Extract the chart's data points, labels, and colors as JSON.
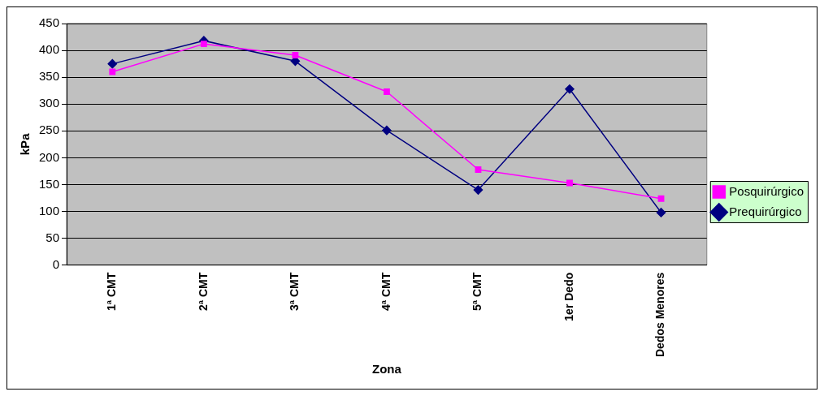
{
  "chart_data": {
    "type": "line",
    "xlabel": "Zona",
    "ylabel": "kPa",
    "categories": [
      "1ª CMT",
      "2ª CMT",
      "3ª CMT",
      "4ª CMT",
      "5ª CMT",
      "1er Dedo",
      "Dedos Menores"
    ],
    "series": [
      {
        "name": "Prequirúrgico",
        "color": "#000080",
        "marker": "diamond",
        "values": [
          375,
          418,
          380,
          251,
          140,
          328,
          98
        ]
      },
      {
        "name": "Posquirúrgico",
        "color": "#ff00ff",
        "marker": "square",
        "values": [
          360,
          412,
          391,
          323,
          178,
          153,
          124
        ]
      }
    ],
    "ylim": [
      0,
      450
    ],
    "yticks": [
      0,
      50,
      100,
      150,
      200,
      250,
      300,
      350,
      400,
      450
    ],
    "grid": "y",
    "legend": "right",
    "line_style": "solid"
  }
}
